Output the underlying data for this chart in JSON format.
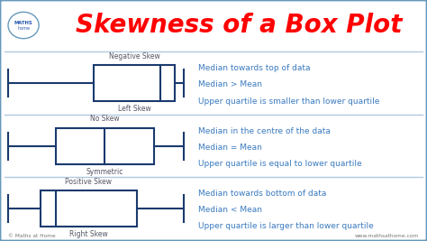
{
  "title": "Skewness of a Box Plot",
  "title_color": "#FF0000",
  "background_color": "#FFFFFF",
  "border_color": "#6699BB",
  "box_color": "#1a3a6e",
  "text_color": "#3a7abf",
  "label_color": "#555555",
  "rows": [
    {
      "top_label": "Negative Skew",
      "bottom_label": "Left Skew",
      "wl": 0.02,
      "wr": 0.43,
      "bl": 0.22,
      "br": 0.41,
      "med": 0.375,
      "descriptions": [
        "Median towards top of data",
        "Median > Mean",
        "Upper quartile is smaller than lower quartile"
      ]
    },
    {
      "top_label": "No Skew",
      "bottom_label": "Symmetric",
      "wl": 0.02,
      "wr": 0.43,
      "bl": 0.13,
      "br": 0.36,
      "med": 0.245,
      "descriptions": [
        "Median in the centre of the data",
        "Median = Mean",
        "Upper quartile is equal to lower quartile"
      ]
    },
    {
      "top_label": "Positive Skew",
      "bottom_label": "Right Skew",
      "wl": 0.02,
      "wr": 0.43,
      "bl": 0.095,
      "br": 0.32,
      "med": 0.13,
      "descriptions": [
        "Median towards bottom of data",
        "Median < Mean",
        "Upper quartile is larger than lower quartile"
      ]
    }
  ],
  "divider_color": "#b0c8e0",
  "footer_left": "© Maths at Home",
  "footer_right": "www.mathsathome.com"
}
